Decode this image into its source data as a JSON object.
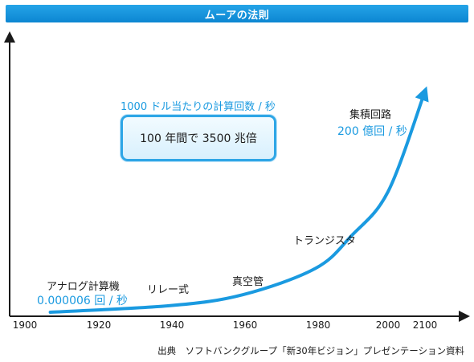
{
  "title": "ムーアの法則",
  "chart_data": {
    "type": "line",
    "xlabel": "",
    "ylabel": "",
    "x_ticks": [
      "1900",
      "1920",
      "1940",
      "1960",
      "1980",
      "2000",
      "2100"
    ],
    "series": [
      {
        "values_description": null,
        "x": [
          1907,
          1940,
          1960,
          1980,
          1990,
          2000,
          2010
        ],
        "y": [
          0,
          0.03,
          0.08,
          0.2,
          0.35,
          0.55,
          1.0
        ]
      }
    ],
    "y_caption": "1000 ドル当たりの計算回数 / 秒",
    "highlight": "100 年間で 3500 兆倍",
    "annotations": [
      {
        "id": "analog",
        "name": "アナログ計算機",
        "rate": "0.000006 回 / 秒"
      },
      {
        "id": "relay",
        "name": "リレー式"
      },
      {
        "id": "vacuum",
        "name": "真空管"
      },
      {
        "id": "transistor",
        "name": "トランジスタ"
      },
      {
        "id": "ic",
        "name": "集積回路",
        "rate": "200 億回 / 秒"
      }
    ],
    "colors": {
      "curve": "#1a9ae0",
      "banner": "#1a94dc",
      "axis": "#1a1a1a"
    }
  },
  "source": "出典　ソフトバンクグループ「新30年ビジョン」プレゼンテーション資料"
}
